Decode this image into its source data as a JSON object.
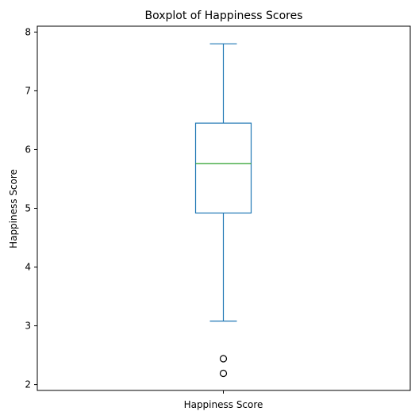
{
  "chart_data": {
    "type": "box",
    "title": "Boxplot of Happiness Scores",
    "xlabel": "",
    "ylabel": "Happiness Score",
    "categories": [
      "Happiness Score"
    ],
    "ylim": [
      1.9,
      8.1
    ],
    "yticks": [
      2,
      3,
      4,
      5,
      6,
      7,
      8
    ],
    "grid": false,
    "legend": "none",
    "box": {
      "whisker_low": 3.08,
      "q1": 4.92,
      "median": 5.76,
      "q3": 6.45,
      "whisker_high": 7.8,
      "outliers": [
        2.44,
        2.19
      ]
    },
    "colors": {
      "box": "#1f77b4",
      "median": "#2ca02c",
      "outlier": "#000000",
      "axis": "#000000"
    }
  }
}
